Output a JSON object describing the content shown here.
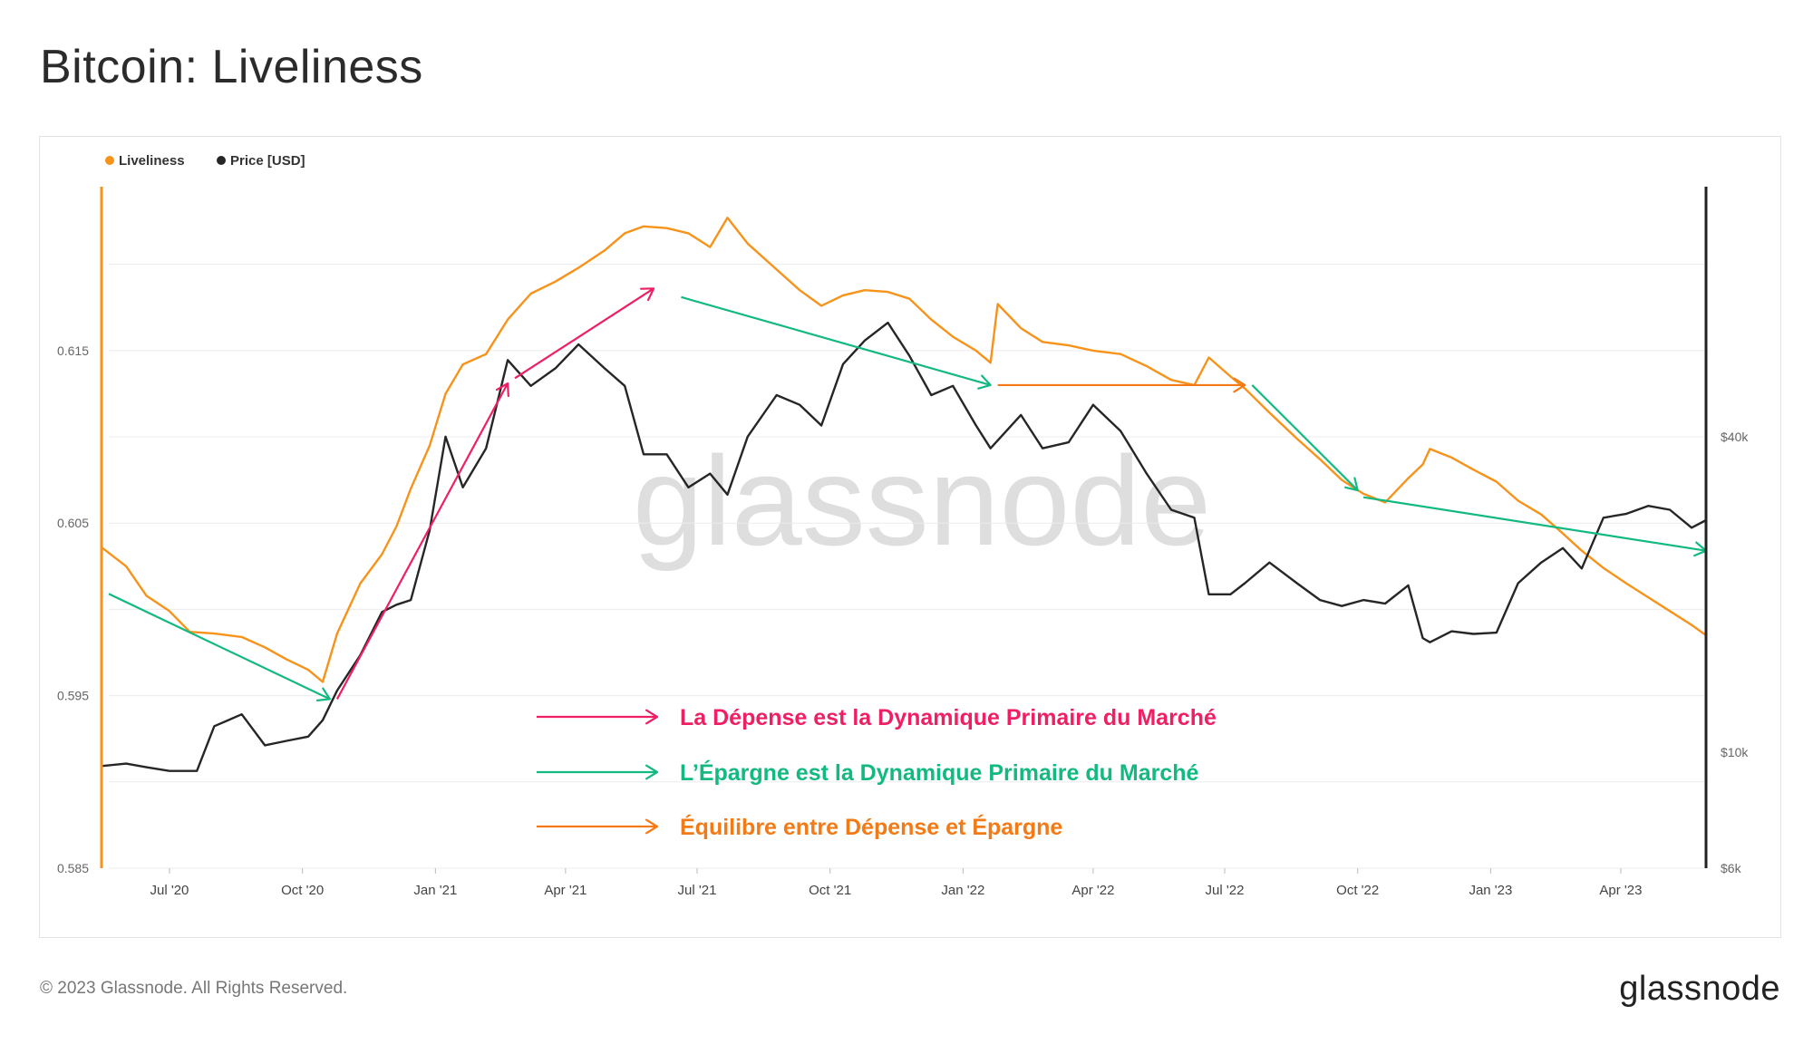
{
  "title": "Bitcoin: Liveliness",
  "footer": {
    "copyright": "© 2023 Glassnode. All Rights Reserved.",
    "logo": "glassnode"
  },
  "watermark": "glassnode",
  "colors": {
    "liveliness": "#F7931A",
    "price": "#262626",
    "spending": "#EE1F63",
    "saving": "#12B981",
    "equilibrium": "#F47A16",
    "grid": "#ececec",
    "axis_left": "#F7931A",
    "axis_right": "#222222"
  },
  "chart_data": {
    "type": "line",
    "legend": [
      "Liveliness",
      "Price [USD]"
    ],
    "legend_position": "top-left",
    "x_ticks": [
      "Jul '20",
      "Oct '20",
      "Jan '21",
      "Apr '21",
      "Jul '21",
      "Oct '21",
      "Jan '22",
      "Apr '22",
      "Jul '22",
      "Oct '22",
      "Jan '23",
      "Apr '23"
    ],
    "x_range": [
      "2020-05-15",
      "2023-05-30"
    ],
    "y_left": {
      "ticks": [
        "0.585",
        "0.595",
        "0.605",
        "0.615"
      ],
      "range": [
        0.585,
        0.6245
      ]
    },
    "y_right": {
      "ticks": [
        "$6k",
        "$10k",
        "$40k"
      ],
      "scale": "log",
      "range": [
        6000,
        120000
      ]
    },
    "grid": true,
    "series": [
      {
        "name": "Liveliness",
        "axis": "left",
        "points": [
          [
            "2020-05-15",
            0.6036
          ],
          [
            "2020-06-01",
            0.6025
          ],
          [
            "2020-06-15",
            0.6008
          ],
          [
            "2020-07-01",
            0.5999
          ],
          [
            "2020-07-15",
            0.5987
          ],
          [
            "2020-08-01",
            0.5986
          ],
          [
            "2020-08-20",
            0.5984
          ],
          [
            "2020-09-05",
            0.5978
          ],
          [
            "2020-09-20",
            0.5971
          ],
          [
            "2020-10-05",
            0.5965
          ],
          [
            "2020-10-15",
            0.5958
          ],
          [
            "2020-10-25",
            0.5986
          ],
          [
            "2020-11-10",
            0.6015
          ],
          [
            "2020-11-25",
            0.6032
          ],
          [
            "2020-12-05",
            0.6048
          ],
          [
            "2020-12-15",
            0.607
          ],
          [
            "2020-12-28",
            0.6095
          ],
          [
            "2021-01-08",
            0.6125
          ],
          [
            "2021-01-20",
            0.6142
          ],
          [
            "2021-02-05",
            0.6148
          ],
          [
            "2021-02-20",
            0.6168
          ],
          [
            "2021-03-08",
            0.6183
          ],
          [
            "2021-03-25",
            0.619
          ],
          [
            "2021-04-10",
            0.6198
          ],
          [
            "2021-04-28",
            0.6208
          ],
          [
            "2021-05-12",
            0.6218
          ],
          [
            "2021-05-25",
            0.6222
          ],
          [
            "2021-06-10",
            0.6221
          ],
          [
            "2021-06-25",
            0.6218
          ],
          [
            "2021-07-10",
            0.621
          ],
          [
            "2021-07-22",
            0.6227
          ],
          [
            "2021-08-05",
            0.6212
          ],
          [
            "2021-08-25",
            0.6197
          ],
          [
            "2021-09-10",
            0.6185
          ],
          [
            "2021-09-25",
            0.6176
          ],
          [
            "2021-10-10",
            0.6182
          ],
          [
            "2021-10-25",
            0.6185
          ],
          [
            "2021-11-10",
            0.6184
          ],
          [
            "2021-11-25",
            0.618
          ],
          [
            "2021-12-10",
            0.6168
          ],
          [
            "2021-12-25",
            0.6158
          ],
          [
            "2022-01-10",
            0.615
          ],
          [
            "2022-01-20",
            0.6143
          ],
          [
            "2022-01-25",
            0.6177
          ],
          [
            "2022-02-10",
            0.6163
          ],
          [
            "2022-02-25",
            0.6155
          ],
          [
            "2022-03-15",
            0.6153
          ],
          [
            "2022-04-01",
            0.615
          ],
          [
            "2022-04-20",
            0.6148
          ],
          [
            "2022-05-08",
            0.6141
          ],
          [
            "2022-05-25",
            0.6133
          ],
          [
            "2022-06-10",
            0.613
          ],
          [
            "2022-06-20",
            0.6146
          ],
          [
            "2022-07-05",
            0.6135
          ],
          [
            "2022-07-15",
            0.6128
          ],
          [
            "2022-08-01",
            0.6114
          ],
          [
            "2022-08-20",
            0.6099
          ],
          [
            "2022-09-05",
            0.6087
          ],
          [
            "2022-09-20",
            0.6075
          ],
          [
            "2022-10-05",
            0.6067
          ],
          [
            "2022-10-20",
            0.6062
          ],
          [
            "2022-11-05",
            0.6076
          ],
          [
            "2022-11-15",
            0.6084
          ],
          [
            "2022-11-20",
            0.6093
          ],
          [
            "2022-12-05",
            0.6088
          ],
          [
            "2022-12-20",
            0.6081
          ],
          [
            "2023-01-05",
            0.6074
          ],
          [
            "2023-01-20",
            0.6063
          ],
          [
            "2023-02-05",
            0.6055
          ],
          [
            "2023-02-20",
            0.6044
          ],
          [
            "2023-03-05",
            0.6034
          ],
          [
            "2023-03-20",
            0.6024
          ],
          [
            "2023-04-05",
            0.6015
          ],
          [
            "2023-04-20",
            0.6007
          ],
          [
            "2023-05-05",
            0.5999
          ],
          [
            "2023-05-20",
            0.5991
          ],
          [
            "2023-05-30",
            0.5985
          ]
        ]
      },
      {
        "name": "Price [USD]",
        "axis": "right",
        "points": [
          [
            "2020-05-15",
            9400
          ],
          [
            "2020-06-01",
            9500
          ],
          [
            "2020-06-15",
            9350
          ],
          [
            "2020-07-01",
            9200
          ],
          [
            "2020-07-20",
            9200
          ],
          [
            "2020-08-01",
            11200
          ],
          [
            "2020-08-20",
            11800
          ],
          [
            "2020-09-05",
            10300
          ],
          [
            "2020-09-20",
            10500
          ],
          [
            "2020-10-05",
            10700
          ],
          [
            "2020-10-15",
            11500
          ],
          [
            "2020-10-25",
            13100
          ],
          [
            "2020-11-10",
            15300
          ],
          [
            "2020-11-25",
            18500
          ],
          [
            "2020-12-05",
            19100
          ],
          [
            "2020-12-15",
            19500
          ],
          [
            "2020-12-28",
            26500
          ],
          [
            "2021-01-08",
            40000
          ],
          [
            "2021-01-20",
            32000
          ],
          [
            "2021-02-05",
            38000
          ],
          [
            "2021-02-20",
            56000
          ],
          [
            "2021-03-08",
            50000
          ],
          [
            "2021-03-25",
            54000
          ],
          [
            "2021-04-10",
            60000
          ],
          [
            "2021-04-28",
            54000
          ],
          [
            "2021-05-12",
            50000
          ],
          [
            "2021-05-25",
            37000
          ],
          [
            "2021-06-10",
            37000
          ],
          [
            "2021-06-25",
            32000
          ],
          [
            "2021-07-10",
            34000
          ],
          [
            "2021-07-22",
            31000
          ],
          [
            "2021-08-05",
            40000
          ],
          [
            "2021-08-25",
            48000
          ],
          [
            "2021-09-10",
            46000
          ],
          [
            "2021-09-25",
            42000
          ],
          [
            "2021-10-10",
            55000
          ],
          [
            "2021-10-25",
            61000
          ],
          [
            "2021-11-10",
            66000
          ],
          [
            "2021-11-25",
            57000
          ],
          [
            "2021-12-10",
            48000
          ],
          [
            "2021-12-25",
            50000
          ],
          [
            "2022-01-10",
            42000
          ],
          [
            "2022-01-20",
            38000
          ],
          [
            "2022-02-10",
            44000
          ],
          [
            "2022-02-25",
            38000
          ],
          [
            "2022-03-15",
            39000
          ],
          [
            "2022-04-01",
            46000
          ],
          [
            "2022-04-20",
            41000
          ],
          [
            "2022-05-08",
            34000
          ],
          [
            "2022-05-25",
            29000
          ],
          [
            "2022-06-10",
            28000
          ],
          [
            "2022-06-20",
            20000
          ],
          [
            "2022-07-05",
            20000
          ],
          [
            "2022-07-15",
            21000
          ],
          [
            "2022-08-01",
            23000
          ],
          [
            "2022-08-20",
            21000
          ],
          [
            "2022-09-05",
            19500
          ],
          [
            "2022-09-20",
            19000
          ],
          [
            "2022-10-05",
            19500
          ],
          [
            "2022-10-20",
            19200
          ],
          [
            "2022-11-05",
            20800
          ],
          [
            "2022-11-15",
            16500
          ],
          [
            "2022-11-20",
            16200
          ],
          [
            "2022-12-05",
            17000
          ],
          [
            "2022-12-20",
            16800
          ],
          [
            "2023-01-05",
            16900
          ],
          [
            "2023-01-20",
            21000
          ],
          [
            "2023-02-05",
            23000
          ],
          [
            "2023-02-20",
            24500
          ],
          [
            "2023-03-05",
            22400
          ],
          [
            "2023-03-20",
            28000
          ],
          [
            "2023-04-05",
            28500
          ],
          [
            "2023-04-20",
            29500
          ],
          [
            "2023-05-05",
            29000
          ],
          [
            "2023-05-20",
            26800
          ],
          [
            "2023-05-30",
            27700
          ]
        ]
      }
    ],
    "annotations": [
      {
        "label": "La Dépense est la Dynamique Primaire du Marché",
        "type": "spending"
      },
      {
        "label": "L’Épargne est la Dynamique Primaire du Marché",
        "type": "saving"
      },
      {
        "label": "Équilibre entre Dépense et Épargne",
        "type": "equilibrium"
      }
    ],
    "arrows": [
      {
        "type": "saving",
        "from": [
          "2020-05-20",
          0.6009
        ],
        "to": [
          "2020-10-20",
          0.5948
        ]
      },
      {
        "type": "spending",
        "from": [
          "2020-10-25",
          0.5948
        ],
        "to": [
          "2021-02-20",
          0.6131
        ]
      },
      {
        "type": "spending",
        "from": [
          "2021-02-25",
          0.6134
        ],
        "to": [
          "2021-06-01",
          0.6186
        ]
      },
      {
        "type": "saving",
        "from": [
          "2021-06-20",
          0.6181
        ],
        "to": [
          "2022-01-20",
          0.613
        ]
      },
      {
        "type": "equilibrium",
        "from": [
          "2022-01-25",
          0.613
        ],
        "to": [
          "2022-07-15",
          0.613
        ]
      },
      {
        "type": "saving",
        "from": [
          "2022-07-20",
          0.613
        ],
        "to": [
          "2022-10-01",
          0.6069
        ]
      },
      {
        "type": "saving",
        "from": [
          "2022-10-05",
          0.6065
        ],
        "to": [
          "2023-05-30",
          0.6034
        ]
      }
    ]
  }
}
